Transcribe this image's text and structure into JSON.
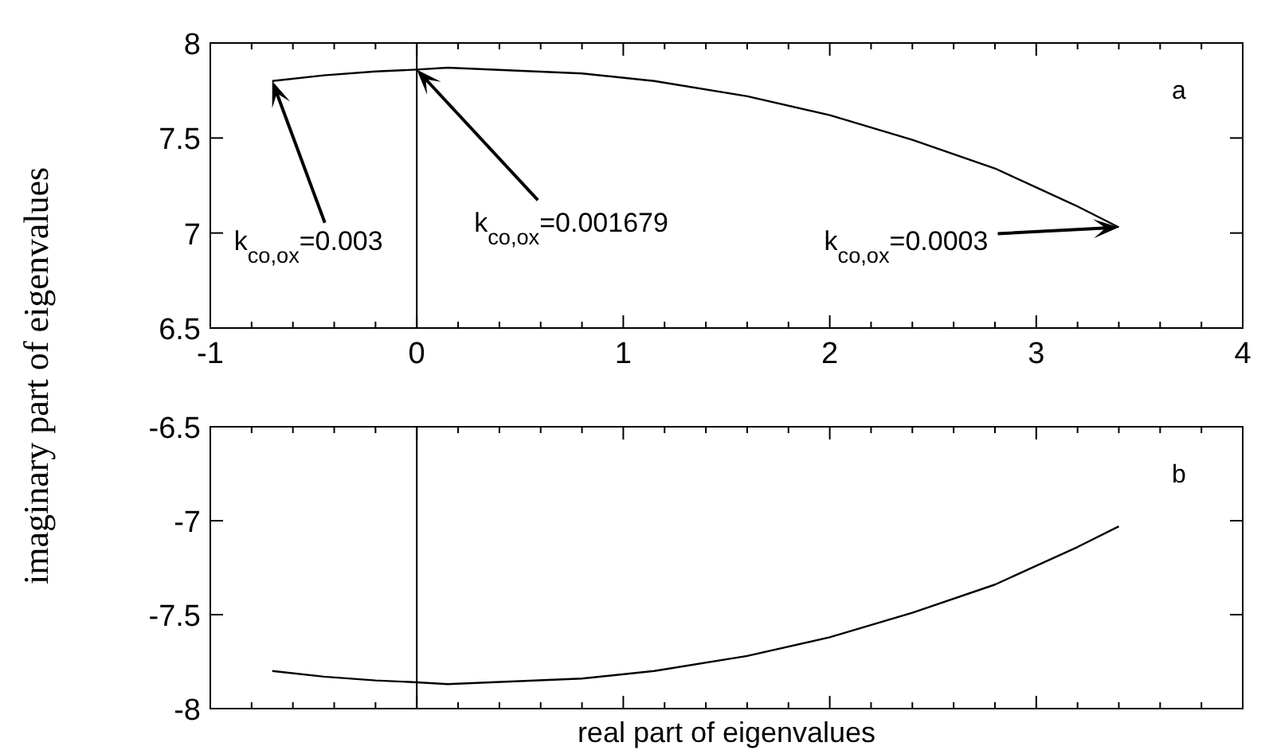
{
  "chart_data": [
    {
      "type": "line",
      "xlim": [
        -1,
        4
      ],
      "ylim": [
        6.5,
        8
      ],
      "xticks": [
        -1,
        {
          "value": -0.8,
          "label": null
        },
        {
          "value": -0.6,
          "label": null
        },
        {
          "value": -0.4,
          "label": null
        },
        {
          "value": -0.2,
          "label": null
        },
        0,
        {
          "value": 0.2,
          "label": null
        },
        {
          "value": 0.4,
          "label": null
        },
        {
          "value": 0.6,
          "label": null
        },
        {
          "value": 0.8,
          "label": null
        },
        1,
        {
          "value": 1.2,
          "label": null
        },
        {
          "value": 1.4,
          "label": null
        },
        {
          "value": 1.6,
          "label": null
        },
        {
          "value": 1.8,
          "label": null
        },
        2,
        {
          "value": 2.2,
          "label": null
        },
        {
          "value": 2.4,
          "label": null
        },
        {
          "value": 2.6,
          "label": null
        },
        {
          "value": 2.8,
          "label": null
        },
        3,
        {
          "value": 3.2,
          "label": null
        },
        {
          "value": 3.4,
          "label": null
        },
        {
          "value": 3.6,
          "label": null
        },
        {
          "value": 3.8,
          "label": null
        },
        4
      ],
      "yticks": [
        6.5,
        7,
        7.5,
        8
      ],
      "ylabel": "imaginary part of eigenvalues",
      "x": [
        -0.7,
        -0.45,
        -0.2,
        0.0,
        0.15,
        0.8,
        1.15,
        1.6,
        2.0,
        2.4,
        2.8,
        3.0,
        3.2,
        3.4
      ],
      "series": [
        {
          "color": "#000000",
          "values": [
            7.8,
            7.83,
            7.85,
            7.86,
            7.87,
            7.84,
            7.8,
            7.72,
            7.62,
            7.49,
            7.34,
            7.24,
            7.14,
            7.03
          ]
        }
      ],
      "ref_lines": [
        {
          "axis": "x",
          "value": 0,
          "color": "#000000"
        }
      ],
      "annotations": [
        "a",
        "k$_{co,ox}$=0.003",
        "k$_{co,ox}$=0.001679",
        "k$_{co,ox}$=0.0003"
      ],
      "grid": false
    },
    {
      "type": "line",
      "xlim": [
        -1,
        4
      ],
      "ylim": [
        -8,
        -6.5
      ],
      "tick_labels": "y",
      "xticks": [
        -1,
        {
          "value": -0.8,
          "label": null
        },
        {
          "value": -0.6,
          "label": null
        },
        {
          "value": -0.4,
          "label": null
        },
        {
          "value": -0.2,
          "label": null
        },
        0,
        {
          "value": 0.2,
          "label": null
        },
        {
          "value": 0.4,
          "label": null
        },
        {
          "value": 0.6,
          "label": null
        },
        {
          "value": 0.8,
          "label": null
        },
        1,
        {
          "value": 1.2,
          "label": null
        },
        {
          "value": 1.4,
          "label": null
        },
        {
          "value": 1.6,
          "label": null
        },
        {
          "value": 1.8,
          "label": null
        },
        2,
        {
          "value": 2.2,
          "label": null
        },
        {
          "value": 2.4,
          "label": null
        },
        {
          "value": 2.6,
          "label": null
        },
        {
          "value": 2.8,
          "label": null
        },
        3,
        {
          "value": 3.2,
          "label": null
        },
        {
          "value": 3.4,
          "label": null
        },
        {
          "value": 3.6,
          "label": null
        },
        {
          "value": 3.8,
          "label": null
        },
        4
      ],
      "yticks": [
        -8,
        -7.5,
        -7,
        -6.5
      ],
      "xlabel": "real part of eigenvalues",
      "x": [
        -0.7,
        -0.45,
        -0.2,
        0.0,
        0.15,
        0.8,
        1.15,
        1.6,
        2.0,
        2.4,
        2.8,
        3.0,
        3.2,
        3.4
      ],
      "series": [
        {
          "color": "#000000",
          "values": [
            -7.8,
            -7.83,
            -7.85,
            -7.86,
            -7.87,
            -7.84,
            -7.8,
            -7.72,
            -7.62,
            -7.49,
            -7.34,
            -7.24,
            -7.14,
            -7.03
          ]
        }
      ],
      "ref_lines": [
        {
          "axis": "x",
          "value": 0,
          "color": "#000000"
        }
      ],
      "annotations": [
        "b"
      ],
      "grid": false
    }
  ]
}
